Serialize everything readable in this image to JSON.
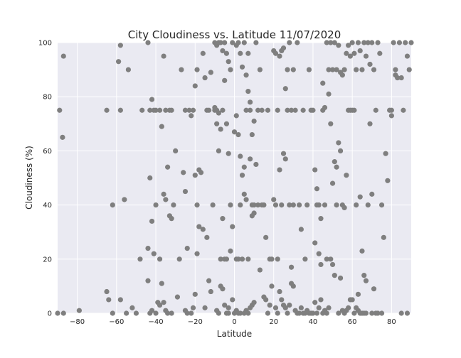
{
  "chart_data": {
    "type": "scatter",
    "title": "City Cloudiness vs. Latitude 11/07/2020",
    "xlabel": "Latitude",
    "ylabel": "Cloudiness (%)",
    "xlim": [
      -90,
      90
    ],
    "ylim": [
      0,
      100
    ],
    "xticks": [
      -80,
      -60,
      -40,
      -20,
      0,
      20,
      40,
      60,
      80
    ],
    "yticks": [
      0,
      20,
      40,
      60,
      80,
      100
    ],
    "xtick_labels": [
      "−80",
      "−60",
      "−40",
      "−20",
      "0",
      "20",
      "40",
      "60",
      "80"
    ],
    "ytick_labels": [
      "0",
      "20",
      "40",
      "60",
      "80",
      "100"
    ],
    "grid": true,
    "background": "#eaeaf2",
    "point_color": "#7f7f7f",
    "points": [
      [
        -89,
        75
      ],
      [
        -87,
        95
      ],
      [
        -87.5,
        65
      ],
      [
        -90,
        0
      ],
      [
        -87,
        0
      ],
      [
        -79,
        1
      ],
      [
        -65,
        75
      ],
      [
        -62,
        40
      ],
      [
        -59,
        93
      ],
      [
        -58,
        99
      ],
      [
        -58,
        75
      ],
      [
        -56,
        42
      ],
      [
        -54,
        90
      ],
      [
        -52,
        2
      ],
      [
        -50,
        0
      ],
      [
        -48,
        20
      ],
      [
        -47,
        75
      ],
      [
        -65,
        8
      ],
      [
        -64,
        5
      ],
      [
        -62,
        0
      ],
      [
        -58,
        5
      ],
      [
        -55,
        0
      ],
      [
        -44,
        100
      ],
      [
        -43,
        75
      ],
      [
        -42,
        79
      ],
      [
        -41,
        75
      ],
      [
        -40,
        75
      ],
      [
        -38,
        75
      ],
      [
        -37,
        69
      ],
      [
        -36,
        95
      ],
      [
        -35,
        75
      ],
      [
        -33,
        75
      ],
      [
        -32,
        75
      ],
      [
        -44,
        24
      ],
      [
        -43,
        50
      ],
      [
        -42,
        34
      ],
      [
        -41,
        22
      ],
      [
        -40,
        40
      ],
      [
        -39,
        4
      ],
      [
        -38,
        20
      ],
      [
        -37,
        11
      ],
      [
        -36,
        44
      ],
      [
        -35,
        42
      ],
      [
        -34,
        54
      ],
      [
        -33,
        36
      ],
      [
        -32,
        35
      ],
      [
        -31,
        40
      ],
      [
        -44,
        12
      ],
      [
        -43,
        0
      ],
      [
        -42,
        1
      ],
      [
        -40,
        0
      ],
      [
        -38,
        3
      ],
      [
        -36,
        4
      ],
      [
        -35,
        1
      ],
      [
        -34,
        0
      ],
      [
        -32,
        0
      ],
      [
        -30,
        60
      ],
      [
        -29,
        6
      ],
      [
        -28,
        20
      ],
      [
        -27,
        90
      ],
      [
        -26,
        52
      ],
      [
        -25,
        75
      ],
      [
        -25,
        45
      ],
      [
        -24,
        24
      ],
      [
        -23,
        75
      ],
      [
        -22,
        73
      ],
      [
        -21,
        75
      ],
      [
        -20,
        84
      ],
      [
        -20,
        51
      ],
      [
        -19,
        90
      ],
      [
        -19,
        40
      ],
      [
        -18,
        53
      ],
      [
        -17,
        52
      ],
      [
        -16,
        96
      ],
      [
        -15,
        87
      ],
      [
        -14,
        75
      ],
      [
        -13,
        75
      ],
      [
        -12,
        89
      ],
      [
        -11,
        40
      ],
      [
        -10,
        75
      ],
      [
        -25,
        1
      ],
      [
        -24,
        0
      ],
      [
        -22,
        0
      ],
      [
        -21,
        2
      ],
      [
        -20,
        7
      ],
      [
        -19,
        22
      ],
      [
        -18,
        32
      ],
      [
        -16,
        31
      ],
      [
        -15,
        2
      ],
      [
        -14,
        28
      ],
      [
        -13,
        12
      ],
      [
        -12,
        8
      ],
      [
        -10,
        100
      ],
      [
        -9,
        99
      ],
      [
        -8,
        100
      ],
      [
        -7,
        100
      ],
      [
        -6,
        97
      ],
      [
        -5,
        100
      ],
      [
        -4,
        96
      ],
      [
        -3,
        93
      ],
      [
        -2,
        90
      ],
      [
        -1,
        100
      ],
      [
        -9,
        75
      ],
      [
        -8,
        74
      ],
      [
        -7,
        68
      ],
      [
        -6,
        75
      ],
      [
        -5,
        86
      ],
      [
        -4,
        70
      ],
      [
        -3,
        59
      ],
      [
        -2,
        40
      ],
      [
        -1,
        32
      ],
      [
        0,
        67
      ],
      [
        -10,
        76
      ],
      [
        -9,
        70
      ],
      [
        -8,
        60
      ],
      [
        -7,
        20
      ],
      [
        -6,
        35
      ],
      [
        -5,
        20
      ],
      [
        -4,
        20
      ],
      [
        -3,
        2
      ],
      [
        -2,
        23
      ],
      [
        -1,
        5
      ],
      [
        -9,
        1
      ],
      [
        -8,
        0
      ],
      [
        -7,
        10
      ],
      [
        -6,
        9
      ],
      [
        -5,
        3
      ],
      [
        -4,
        0
      ],
      [
        -3,
        0
      ],
      [
        1,
        99
      ],
      [
        2,
        100
      ],
      [
        3,
        96
      ],
      [
        4,
        91
      ],
      [
        5,
        100
      ],
      [
        6,
        88
      ],
      [
        7,
        96
      ],
      [
        8,
        75
      ],
      [
        9,
        66
      ],
      [
        10,
        71
      ],
      [
        1,
        73
      ],
      [
        2,
        66
      ],
      [
        3,
        58
      ],
      [
        4,
        51
      ],
      [
        5,
        54
      ],
      [
        6,
        75
      ],
      [
        7,
        82
      ],
      [
        8,
        78
      ],
      [
        9,
        40
      ],
      [
        10,
        40
      ],
      [
        1,
        20
      ],
      [
        2,
        20
      ],
      [
        3,
        40
      ],
      [
        4,
        20
      ],
      [
        5,
        44
      ],
      [
        6,
        42
      ],
      [
        7,
        20
      ],
      [
        8,
        57
      ],
      [
        9,
        36
      ],
      [
        10,
        37
      ],
      [
        0,
        0
      ],
      [
        1,
        1
      ],
      [
        2,
        0
      ],
      [
        3,
        0
      ],
      [
        5,
        0
      ],
      [
        6,
        1
      ],
      [
        7,
        0
      ],
      [
        8,
        2
      ],
      [
        9,
        3
      ],
      [
        10,
        4
      ],
      [
        11,
        100
      ],
      [
        12,
        75
      ],
      [
        13,
        90
      ],
      [
        14,
        75
      ],
      [
        15,
        40
      ],
      [
        16,
        28
      ],
      [
        17,
        75
      ],
      [
        18,
        20
      ],
      [
        19,
        20
      ],
      [
        20,
        97
      ],
      [
        11,
        55
      ],
      [
        12,
        40
      ],
      [
        13,
        16
      ],
      [
        14,
        40
      ],
      [
        15,
        6
      ],
      [
        16,
        5
      ],
      [
        17,
        0
      ],
      [
        18,
        3
      ],
      [
        19,
        10
      ],
      [
        20,
        42
      ],
      [
        21,
        96
      ],
      [
        22,
        75
      ],
      [
        23,
        95
      ],
      [
        24,
        97
      ],
      [
        25,
        98
      ],
      [
        26,
        83
      ],
      [
        27,
        90
      ],
      [
        28,
        100
      ],
      [
        29,
        75
      ],
      [
        30,
        90
      ],
      [
        21,
        40
      ],
      [
        22,
        20
      ],
      [
        23,
        53
      ],
      [
        24,
        40
      ],
      [
        25,
        59
      ],
      [
        26,
        57
      ],
      [
        27,
        75
      ],
      [
        28,
        40
      ],
      [
        29,
        17
      ],
      [
        30,
        40
      ],
      [
        21,
        2
      ],
      [
        22,
        0
      ],
      [
        23,
        8
      ],
      [
        24,
        5
      ],
      [
        25,
        3
      ],
      [
        26,
        2
      ],
      [
        27,
        0
      ],
      [
        28,
        3
      ],
      [
        29,
        11
      ],
      [
        30,
        10
      ],
      [
        31,
        75
      ],
      [
        32,
        100
      ],
      [
        33,
        40
      ],
      [
        34,
        31
      ],
      [
        35,
        75
      ],
      [
        36,
        20
      ],
      [
        37,
        40
      ],
      [
        38,
        90
      ],
      [
        39,
        75
      ],
      [
        40,
        75
      ],
      [
        31,
        1
      ],
      [
        32,
        0
      ],
      [
        33,
        0
      ],
      [
        34,
        2
      ],
      [
        35,
        0
      ],
      [
        36,
        0
      ],
      [
        37,
        1
      ],
      [
        38,
        0
      ],
      [
        39,
        0
      ],
      [
        40,
        0
      ],
      [
        41,
        53
      ],
      [
        42,
        46
      ],
      [
        43,
        22
      ],
      [
        44,
        18
      ],
      [
        45,
        75
      ],
      [
        46,
        76
      ],
      [
        47,
        100
      ],
      [
        48,
        90
      ],
      [
        49,
        100
      ],
      [
        50,
        90
      ],
      [
        41,
        26
      ],
      [
        42,
        40
      ],
      [
        43,
        40
      ],
      [
        44,
        35
      ],
      [
        45,
        85
      ],
      [
        46,
        40
      ],
      [
        47,
        20
      ],
      [
        48,
        81
      ],
      [
        49,
        70
      ],
      [
        50,
        48
      ],
      [
        41,
        4
      ],
      [
        42,
        0
      ],
      [
        43,
        2
      ],
      [
        44,
        5
      ],
      [
        45,
        0
      ],
      [
        46,
        1
      ],
      [
        47,
        0
      ],
      [
        48,
        2
      ],
      [
        49,
        20
      ],
      [
        50,
        18
      ],
      [
        51,
        100
      ],
      [
        52,
        90
      ],
      [
        53,
        99
      ],
      [
        54,
        89
      ],
      [
        55,
        88
      ],
      [
        56,
        90
      ],
      [
        57,
        96
      ],
      [
        58,
        99
      ],
      [
        59,
        95
      ],
      [
        60,
        100
      ],
      [
        51,
        56
      ],
      [
        52,
        54
      ],
      [
        53,
        63
      ],
      [
        54,
        60
      ],
      [
        55,
        40
      ],
      [
        56,
        39
      ],
      [
        57,
        51
      ],
      [
        58,
        75
      ],
      [
        59,
        75
      ],
      [
        60,
        75
      ],
      [
        51,
        14
      ],
      [
        52,
        40
      ],
      [
        53,
        0
      ],
      [
        54,
        13
      ],
      [
        55,
        1
      ],
      [
        56,
        0
      ],
      [
        57,
        1
      ],
      [
        58,
        2
      ],
      [
        59,
        5
      ],
      [
        60,
        5
      ],
      [
        61,
        96
      ],
      [
        62,
        90
      ],
      [
        63,
        100
      ],
      [
        64,
        97
      ],
      [
        65,
        90
      ],
      [
        66,
        100
      ],
      [
        67,
        95
      ],
      [
        68,
        100
      ],
      [
        69,
        92
      ],
      [
        70,
        100
      ],
      [
        61,
        75
      ],
      [
        62,
        40
      ],
      [
        63,
        7
      ],
      [
        64,
        43
      ],
      [
        65,
        23
      ],
      [
        66,
        14
      ],
      [
        67,
        12
      ],
      [
        68,
        40
      ],
      [
        69,
        70
      ],
      [
        70,
        44
      ],
      [
        61,
        0
      ],
      [
        62,
        2
      ],
      [
        63,
        1
      ],
      [
        64,
        0
      ],
      [
        65,
        0
      ],
      [
        66,
        0
      ],
      [
        67,
        0
      ],
      [
        70,
        0
      ],
      [
        71,
        90
      ],
      [
        72,
        75
      ],
      [
        73,
        100
      ],
      [
        74,
        96
      ],
      [
        75,
        40
      ],
      [
        76,
        28
      ],
      [
        77,
        59
      ],
      [
        78,
        49
      ],
      [
        79,
        75
      ],
      [
        80,
        73
      ],
      [
        71,
        9
      ],
      [
        72,
        0
      ],
      [
        73,
        0
      ],
      [
        75,
        0
      ],
      [
        81,
        100
      ],
      [
        82,
        90
      ],
      [
        83,
        87
      ],
      [
        84,
        100
      ],
      [
        85,
        87
      ],
      [
        86,
        75
      ],
      [
        87,
        100
      ],
      [
        88,
        95
      ],
      [
        89,
        90
      ],
      [
        90,
        100
      ],
      [
        80,
        75
      ],
      [
        82,
        88
      ],
      [
        85,
        0
      ],
      [
        88,
        0
      ]
    ]
  }
}
